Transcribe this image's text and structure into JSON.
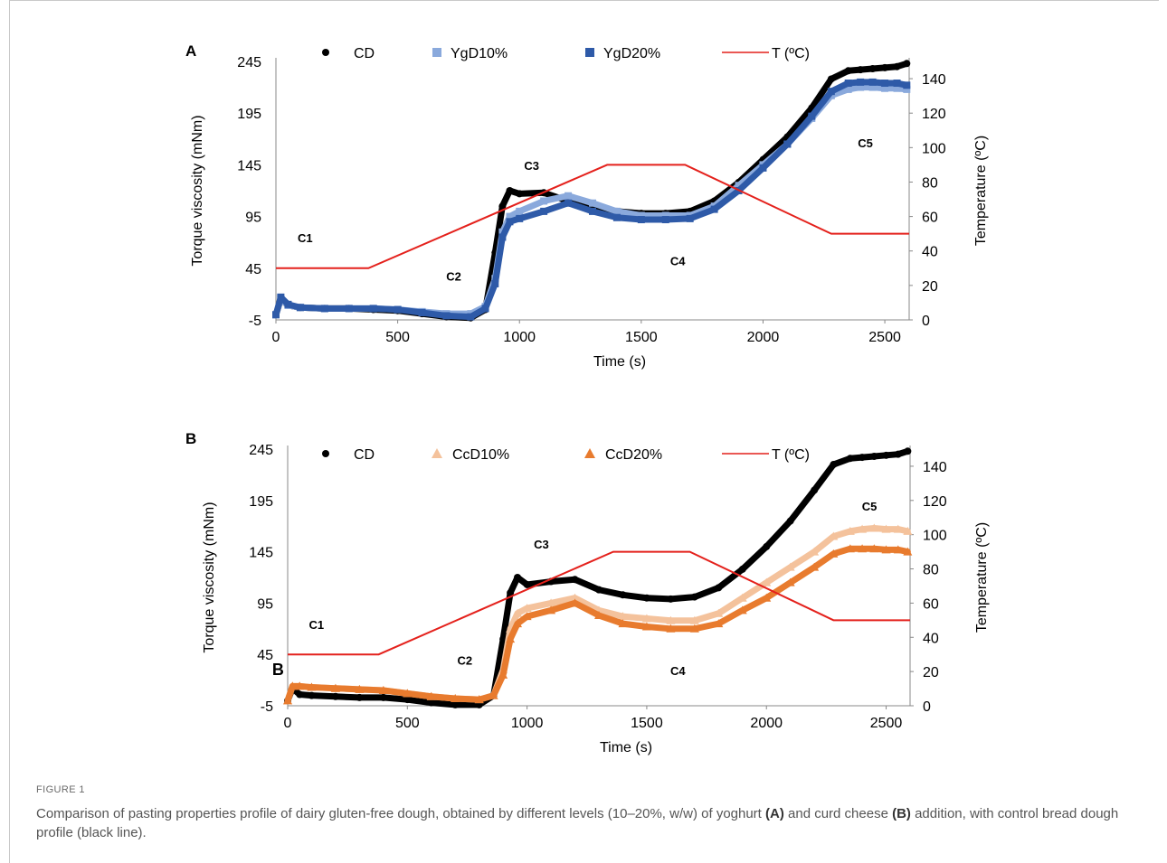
{
  "figure": {
    "label": "FIGURE 1",
    "caption_parts": [
      "Comparison of pasting properties profile of dairy gluten-free dough, obtained by different levels (10–20%, w/w) of yoghurt ",
      "(A)",
      " and curd cheese ",
      "(B)",
      " addition, with control bread dough profile (black line)."
    ]
  },
  "chart_data": [
    {
      "type": "scatter",
      "panel": "A",
      "xlabel": "Time (s)",
      "ylabel": "Torque viscosity (mNm)",
      "y2label": "Temperature (ºC)",
      "xlim": [
        0,
        2600
      ],
      "ylim": [
        -5,
        245
      ],
      "y2lim": [
        0,
        150
      ],
      "xticks": [
        "0",
        "500",
        "1000",
        "1500",
        "2000",
        "2500"
      ],
      "yticks": [
        "245",
        "195",
        "145",
        "95",
        "45",
        "-5"
      ],
      "y2ticks": [
        "0",
        "20",
        "40",
        "60",
        "80",
        "100",
        "120",
        "140"
      ],
      "annotations": [
        {
          "text": "C1",
          "x": 120,
          "y": 70
        },
        {
          "text": "C2",
          "x": 730,
          "y": 33
        },
        {
          "text": "C3",
          "x": 1050,
          "y": 140
        },
        {
          "text": "C4",
          "x": 1650,
          "y": 48
        },
        {
          "text": "C5",
          "x": 2420,
          "y": 162
        }
      ],
      "series": [
        {
          "name": "CD",
          "marker": "circle",
          "color": "#000000",
          "x": [
            0,
            20,
            50,
            100,
            200,
            300,
            400,
            500,
            600,
            700,
            800,
            860,
            900,
            930,
            960,
            1000,
            1100,
            1200,
            1300,
            1400,
            1500,
            1600,
            1700,
            1800,
            1900,
            2000,
            2100,
            2200,
            2280,
            2350,
            2400,
            2450,
            2500,
            2550,
            2590
          ],
          "y": [
            0,
            15,
            9,
            7,
            6,
            6,
            5,
            4,
            1,
            -2,
            -3,
            5,
            60,
            105,
            120,
            117,
            118,
            110,
            103,
            100,
            98,
            98,
            100,
            110,
            128,
            150,
            172,
            200,
            228,
            236,
            237,
            238,
            239,
            240,
            243
          ]
        },
        {
          "name": "YgD10%",
          "marker": "square",
          "color": "#8aa9dc",
          "x": [
            0,
            20,
            50,
            100,
            200,
            300,
            400,
            500,
            600,
            700,
            800,
            860,
            900,
            930,
            960,
            1000,
            1100,
            1200,
            1300,
            1400,
            1500,
            1600,
            1700,
            1800,
            1900,
            2000,
            2100,
            2200,
            2280,
            2350,
            2400,
            2450,
            2500,
            2550,
            2590
          ],
          "y": [
            0,
            15,
            9,
            7,
            6,
            6,
            6,
            5,
            3,
            1,
            1,
            8,
            35,
            80,
            95,
            100,
            110,
            115,
            108,
            100,
            96,
            96,
            96,
            105,
            125,
            145,
            165,
            190,
            212,
            218,
            220,
            220,
            219,
            219,
            218
          ]
        },
        {
          "name": "YgD20%",
          "marker": "square",
          "color": "#2e5aa8",
          "x": [
            0,
            20,
            50,
            100,
            200,
            300,
            400,
            500,
            600,
            700,
            800,
            860,
            900,
            930,
            960,
            1000,
            1100,
            1200,
            1300,
            1400,
            1500,
            1600,
            1700,
            1800,
            1900,
            2000,
            2100,
            2200,
            2280,
            2350,
            2400,
            2450,
            2500,
            2550,
            2590
          ],
          "y": [
            0,
            17,
            10,
            7,
            6,
            6,
            6,
            5,
            2,
            -1,
            -2,
            6,
            30,
            75,
            90,
            93,
            100,
            108,
            100,
            94,
            92,
            92,
            93,
            102,
            120,
            142,
            165,
            192,
            216,
            224,
            225,
            225,
            224,
            224,
            222
          ]
        },
        {
          "name": "T (ºC)",
          "marker": "line",
          "color": "#e4211c",
          "axis": "y2",
          "x": [
            0,
            50,
            380,
            1360,
            1680,
            2280,
            2600
          ],
          "y": [
            30,
            30,
            30,
            90,
            90,
            50,
            50
          ]
        }
      ]
    },
    {
      "type": "scatter",
      "panel": "B",
      "xlabel": "Time (s)",
      "ylabel": "Torque viscosity (mNm)",
      "y2label": "Temperature (ºC)",
      "xlim": [
        0,
        2600
      ],
      "ylim": [
        -5,
        245
      ],
      "y2lim": [
        0,
        150
      ],
      "xticks": [
        "0",
        "500",
        "1000",
        "1500",
        "2000",
        "2500"
      ],
      "yticks": [
        "245",
        "195",
        "145",
        "95",
        "45",
        "-5"
      ],
      "y2ticks": [
        "0",
        "20",
        "40",
        "60",
        "80",
        "100",
        "120",
        "140"
      ],
      "annotations": [
        {
          "text": "C1",
          "x": 120,
          "y": 70
        },
        {
          "text": "C2",
          "x": 740,
          "y": 35
        },
        {
          "text": "C3",
          "x": 1060,
          "y": 148
        },
        {
          "text": "C4",
          "x": 1630,
          "y": 25
        },
        {
          "text": "C5",
          "x": 2430,
          "y": 185
        },
        {
          "text": "B",
          "x": -40,
          "y": 25
        }
      ],
      "series": [
        {
          "name": "CD",
          "marker": "circle",
          "color": "#000000",
          "x": [
            0,
            20,
            50,
            100,
            200,
            300,
            400,
            500,
            600,
            700,
            800,
            860,
            900,
            930,
            960,
            1000,
            1100,
            1200,
            1300,
            1400,
            1500,
            1600,
            1700,
            1800,
            1900,
            2000,
            2100,
            2200,
            2280,
            2350,
            2400,
            2450,
            2500,
            2550,
            2590
          ],
          "y": [
            0,
            12,
            6,
            5,
            4,
            3,
            3,
            1,
            -2,
            -4,
            -4,
            5,
            60,
            105,
            120,
            113,
            116,
            118,
            108,
            103,
            100,
            99,
            101,
            110,
            128,
            150,
            175,
            205,
            230,
            236,
            237,
            238,
            239,
            240,
            243
          ]
        },
        {
          "name": "CcD10%",
          "marker": "triangle",
          "color": "#f4c29c",
          "x": [
            0,
            20,
            50,
            100,
            200,
            300,
            400,
            500,
            600,
            700,
            800,
            860,
            900,
            930,
            960,
            1000,
            1100,
            1200,
            1300,
            1400,
            1500,
            1600,
            1700,
            1800,
            1900,
            2000,
            2100,
            2200,
            2280,
            2350,
            2400,
            2450,
            2500,
            2550,
            2590
          ],
          "y": [
            0,
            14,
            14,
            13,
            12,
            11,
            10,
            7,
            4,
            2,
            1,
            5,
            30,
            70,
            85,
            90,
            95,
            100,
            88,
            82,
            80,
            78,
            78,
            85,
            100,
            115,
            130,
            145,
            160,
            165,
            167,
            168,
            167,
            167,
            165
          ]
        },
        {
          "name": "CcD20%",
          "marker": "triangle",
          "color": "#e87b2e",
          "x": [
            0,
            20,
            50,
            100,
            200,
            300,
            400,
            500,
            600,
            700,
            800,
            860,
            900,
            930,
            960,
            1000,
            1100,
            1200,
            1300,
            1400,
            1500,
            1600,
            1700,
            1800,
            1900,
            2000,
            2100,
            2200,
            2280,
            2350,
            2400,
            2450,
            2500,
            2550,
            2590
          ],
          "y": [
            0,
            14,
            14,
            13,
            12,
            11,
            10,
            7,
            4,
            2,
            1,
            5,
            25,
            60,
            75,
            82,
            88,
            95,
            83,
            75,
            72,
            70,
            70,
            75,
            88,
            100,
            115,
            130,
            143,
            148,
            148,
            148,
            147,
            147,
            145
          ]
        },
        {
          "name": "T (ºC)",
          "marker": "line",
          "color": "#e4211c",
          "axis": "y2",
          "x": [
            0,
            50,
            380,
            1360,
            1680,
            2280,
            2600
          ],
          "y": [
            30,
            30,
            30,
            90,
            90,
            50,
            50
          ]
        }
      ]
    }
  ]
}
